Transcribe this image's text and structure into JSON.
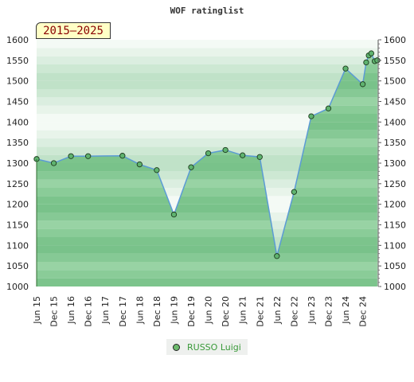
{
  "chart_data": {
    "type": "line",
    "title": "WOF ratinglist",
    "period_label": "2015—2025",
    "ylim": [
      1000,
      1600
    ],
    "y_ticks": [
      1000,
      1050,
      1100,
      1150,
      1200,
      1250,
      1300,
      1350,
      1400,
      1450,
      1500,
      1550,
      1600
    ],
    "x_ticks": [
      "Jun 15",
      "Dec 15",
      "Jun 16",
      "Dec 16",
      "Jun 17",
      "Dec 17",
      "Jun 18",
      "Dec 18",
      "Jun 19",
      "Dec 19",
      "Jun 20",
      "Dec 20",
      "Jun 21",
      "Dec 21",
      "Jun 22",
      "Dec 22",
      "Jun 23",
      "Dec 23",
      "Jun 24",
      "Dec 24"
    ],
    "x_range": [
      0,
      19.9
    ],
    "series": [
      {
        "name": "RUSSO Luigi",
        "color": "#5b9bd5",
        "points": [
          {
            "x": 0,
            "y": 1310
          },
          {
            "x": 1,
            "y": 1300
          },
          {
            "x": 2,
            "y": 1317
          },
          {
            "x": 3,
            "y": 1317
          },
          {
            "x": 5,
            "y": 1318
          },
          {
            "x": 6,
            "y": 1297
          },
          {
            "x": 7,
            "y": 1283
          },
          {
            "x": 8,
            "y": 1175
          },
          {
            "x": 9,
            "y": 1290
          },
          {
            "x": 10,
            "y": 1324
          },
          {
            "x": 11,
            "y": 1332
          },
          {
            "x": 12,
            "y": 1319
          },
          {
            "x": 13,
            "y": 1315
          },
          {
            "x": 14,
            "y": 1074
          },
          {
            "x": 15,
            "y": 1230
          },
          {
            "x": 16,
            "y": 1414
          },
          {
            "x": 17,
            "y": 1433
          },
          {
            "x": 18,
            "y": 1530
          },
          {
            "x": 19,
            "y": 1492
          },
          {
            "x": 19.2,
            "y": 1545
          },
          {
            "x": 19.35,
            "y": 1562
          },
          {
            "x": 19.5,
            "y": 1567
          },
          {
            "x": 19.7,
            "y": 1548
          },
          {
            "x": 19.85,
            "y": 1550
          }
        ]
      }
    ],
    "legend": "bottom-center"
  }
}
